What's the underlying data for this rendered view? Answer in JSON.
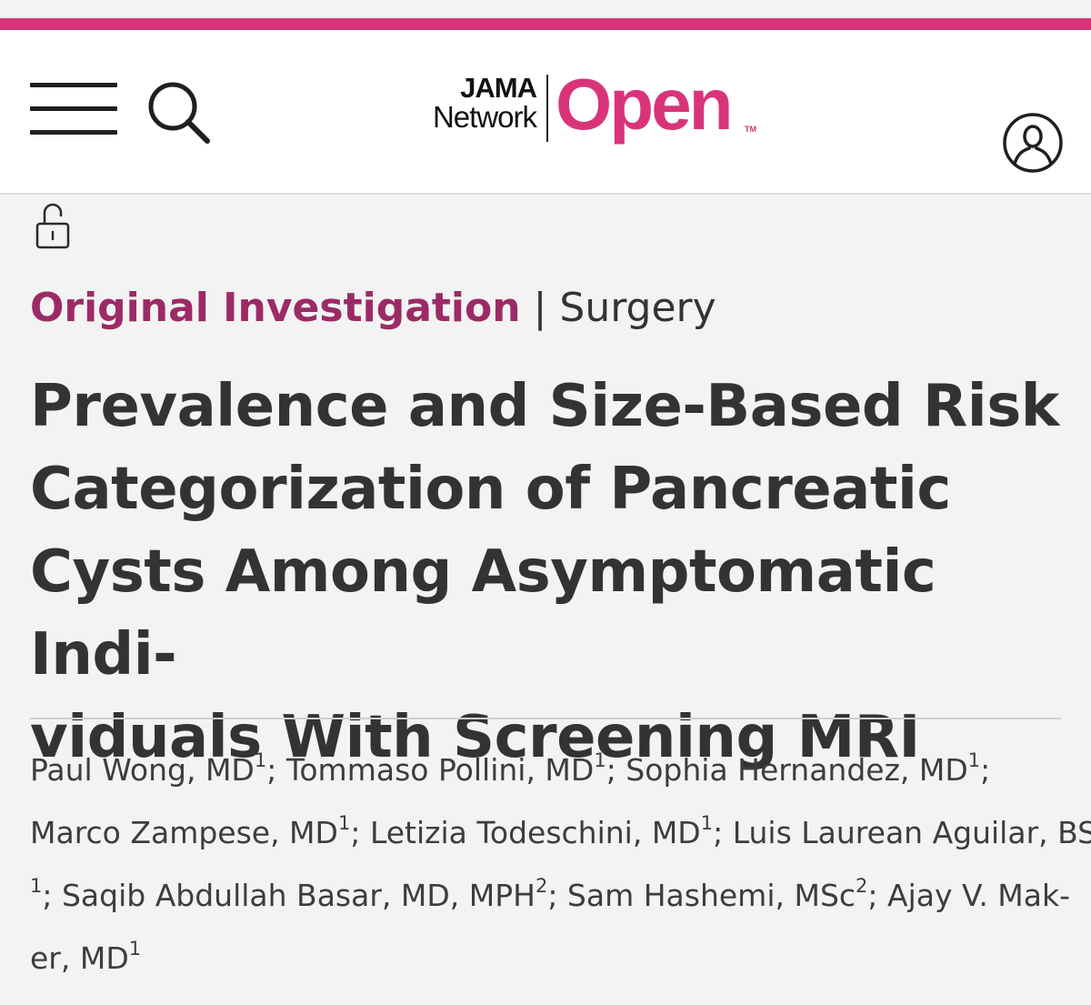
{
  "logo": {
    "line1": "JAMA",
    "line2": "Network",
    "word": "Open",
    "tm": "TM"
  },
  "icons": {
    "menu": "hamburger-menu-icon",
    "search": "search-icon",
    "account": "user-account-icon",
    "access": "unlocked-padlock-icon"
  },
  "colors": {
    "brand": "#d9347a",
    "article_type": "#9c2a66",
    "text": "#333333"
  },
  "article": {
    "type": "Original Investigation",
    "separator": "|",
    "section": "Surgery",
    "title_lines": [
      "Prevalence and Size-Based Risk",
      "Categorization of Pancreatic",
      "Cysts Among Asymptomatic Indi-",
      "viduals With Screening MRI"
    ],
    "author_lines": [
      [
        {
          "name": "Paul Wong, MD",
          "aff": "1",
          "after": "; "
        },
        {
          "name": "Tommaso Pollini, MD",
          "aff": "1",
          "after": "; "
        },
        {
          "name": "Sophia Hernandez, MD",
          "aff": "1",
          "after": ";"
        }
      ],
      [
        {
          "name": "Marco Zampese, MD",
          "aff": "1",
          "after": "; "
        },
        {
          "name": "Letizia Todeschini, MD",
          "aff": "1",
          "after": "; "
        },
        {
          "name": "Luis Laurean Aguilar, BS",
          "aff": "",
          "after": ""
        }
      ],
      [
        {
          "name": "",
          "aff": "1",
          "after": "; "
        },
        {
          "name": "Saqib Abdullah Basar, MD, MPH",
          "aff": "2",
          "after": "; "
        },
        {
          "name": "Sam Hashemi, MSc",
          "aff": "2",
          "after": "; "
        },
        {
          "name": "Ajay V. Mak-",
          "aff": "",
          "after": ""
        }
      ],
      [
        {
          "name": "er, MD",
          "aff": "1",
          "after": ""
        }
      ]
    ]
  }
}
